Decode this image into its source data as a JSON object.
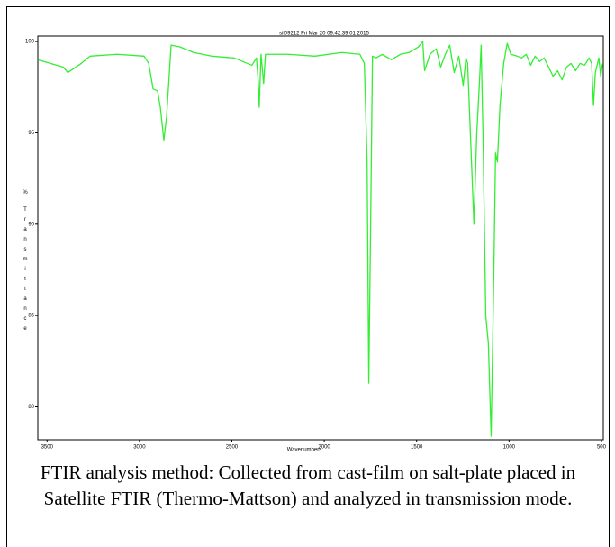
{
  "chart_data": {
    "type": "line",
    "title": "sil09212 Fri Mar 20 09:42:39 01 2015",
    "x_label": "Wavenumbers",
    "y_label": "% Transmittance",
    "caption": "FTIR analysis method: Collected from cast-film on salt-plate placed in Satellite FTIR (Thermo-Mattson) and analyzed in transmission mode.",
    "xlim": [
      3550,
      490
    ],
    "ylim": [
      78.2,
      100.3
    ],
    "xticks": [
      3500,
      3000,
      2500,
      2000,
      1500,
      1000,
      500
    ],
    "yticks": [
      100,
      95,
      90,
      85,
      80
    ],
    "series": [
      {
        "color": "#33ee33",
        "x": [
          3549,
          3412,
          3388,
          3315,
          3267,
          3121,
          2975,
          2950,
          2926,
          2902,
          2887,
          2868,
          2853,
          2838,
          2829,
          2780,
          2707,
          2610,
          2488,
          2391,
          2367,
          2357,
          2352,
          2342,
          2328,
          2318,
          2294,
          2196,
          2051,
          1905,
          1807,
          1783,
          1768,
          1759,
          1749,
          1739,
          1720,
          1686,
          1637,
          1588,
          1540,
          1491,
          1467,
          1457,
          1428,
          1394,
          1370,
          1345,
          1321,
          1297,
          1272,
          1248,
          1233,
          1224,
          1209,
          1190,
          1175,
          1160,
          1151,
          1141,
          1126,
          1112,
          1097,
          1082,
          1073,
          1063,
          1049,
          1029,
          1010,
          990,
          956,
          932,
          907,
          883,
          859,
          835,
          810,
          786,
          762,
          737,
          713,
          689,
          665,
          640,
          616,
          591,
          567,
          553,
          543,
          533,
          514,
          504,
          494
        ],
        "values": [
          99.0,
          98.6,
          98.3,
          98.8,
          99.2,
          99.3,
          99.2,
          98.8,
          97.4,
          97.3,
          96.4,
          94.6,
          95.9,
          98.3,
          99.8,
          99.7,
          99.4,
          99.2,
          99.1,
          98.7,
          99.1,
          97.8,
          96.4,
          99.3,
          97.7,
          99.3,
          99.3,
          99.3,
          99.2,
          99.4,
          99.3,
          98.8,
          93.4,
          81.3,
          90.0,
          99.2,
          99.1,
          99.3,
          99.0,
          99.3,
          99.4,
          99.7,
          100,
          98.4,
          99.3,
          99.6,
          98.6,
          99.3,
          99.8,
          98.3,
          99.2,
          97.6,
          99.1,
          98.8,
          94.9,
          90.0,
          94.9,
          97.8,
          99.8,
          94.9,
          85.0,
          83.5,
          78.4,
          87.5,
          93.9,
          93.4,
          96.5,
          98.8,
          99.9,
          99.3,
          99.2,
          99.1,
          99.3,
          98.7,
          99.2,
          98.9,
          99.1,
          98.6,
          98.1,
          98.4,
          97.9,
          98.6,
          98.8,
          98.4,
          98.8,
          98.7,
          99.1,
          98.8,
          96.5,
          98.3,
          99.1,
          98.1,
          98.8
        ]
      }
    ]
  }
}
